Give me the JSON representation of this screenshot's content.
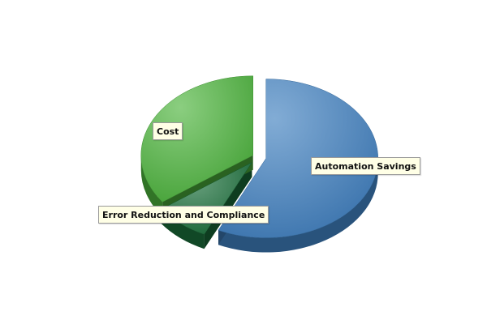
{
  "chart_data": {
    "type": "pie",
    "title": "",
    "slices": [
      {
        "name": "Automation Savings",
        "value": 57,
        "color": "#3f7fbf"
      },
      {
        "name": "Error Reduction and Compliance",
        "value": 8,
        "color": "#1a6e3a"
      },
      {
        "name": "Cost",
        "value": 35,
        "color": "#4cb33c"
      }
    ],
    "style": "3d-exploded",
    "legend": "none"
  }
}
